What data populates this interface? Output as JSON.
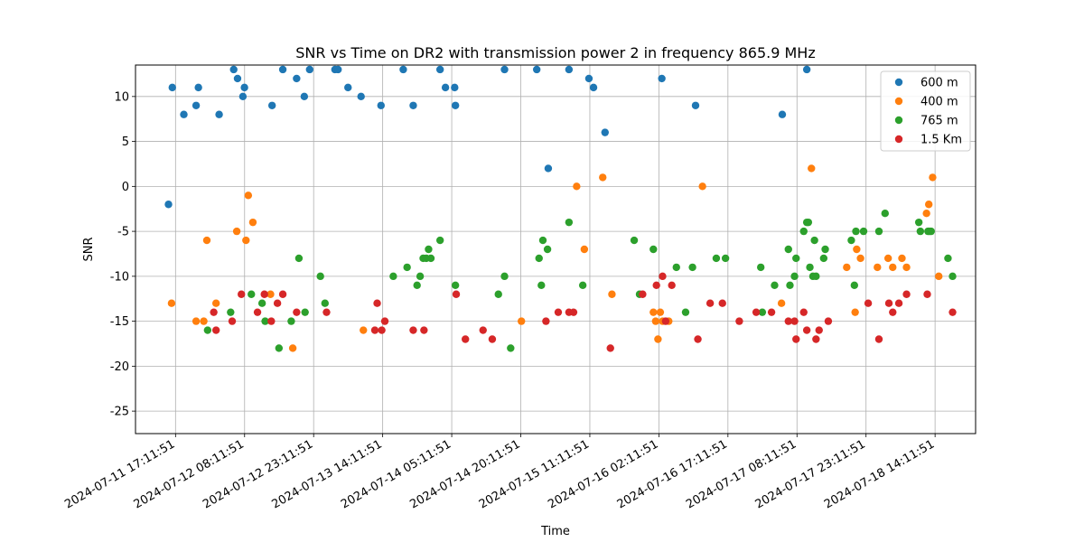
{
  "chart_data": {
    "type": "scatter",
    "title": "SNR vs Time on DR2 with transmission power 2 in frequency 865.9 MHz",
    "xlabel": "Time",
    "ylabel": "SNR",
    "x_is_time": true,
    "xlim": [
      "2024-07-11 08:30",
      "2024-07-18 23:00"
    ],
    "ylim": [
      -27.5,
      13.5
    ],
    "xticks": [
      "2024-07-11 17:11:51",
      "2024-07-12 08:11:51",
      "2024-07-12 23:11:51",
      "2024-07-13 14:11:51",
      "2024-07-14 05:11:51",
      "2024-07-14 20:11:51",
      "2024-07-15 11:11:51",
      "2024-07-16 02:11:51",
      "2024-07-16 17:11:51",
      "2024-07-17 08:11:51",
      "2024-07-17 23:11:51",
      "2024-07-18 14:11:51"
    ],
    "yticks": [
      10,
      5,
      0,
      -5,
      -10,
      -15,
      -20,
      -25
    ],
    "grid": true,
    "legend_position": "top-right",
    "series": [
      {
        "name": "600 m",
        "color": "#1f77b4",
        "points": [
          [
            "2024-07-11 15:40",
            -2
          ],
          [
            "2024-07-11 16:30",
            11
          ],
          [
            "2024-07-11 19:00",
            8
          ],
          [
            "2024-07-11 21:40",
            9
          ],
          [
            "2024-07-11 22:10",
            11
          ],
          [
            "2024-07-12 02:40",
            8
          ],
          [
            "2024-07-12 05:50",
            13
          ],
          [
            "2024-07-12 06:40",
            12
          ],
          [
            "2024-07-12 07:50",
            10
          ],
          [
            "2024-07-12 08:10",
            11
          ],
          [
            "2024-07-12 14:10",
            9
          ],
          [
            "2024-07-12 16:30",
            13
          ],
          [
            "2024-07-12 19:30",
            12
          ],
          [
            "2024-07-12 21:10",
            10
          ],
          [
            "2024-07-12 22:20",
            13
          ],
          [
            "2024-07-13 03:50",
            13
          ],
          [
            "2024-07-13 04:30",
            13
          ],
          [
            "2024-07-13 06:40",
            11
          ],
          [
            "2024-07-13 09:30",
            10
          ],
          [
            "2024-07-13 13:50",
            9
          ],
          [
            "2024-07-13 18:40",
            13
          ],
          [
            "2024-07-13 20:50",
            9
          ],
          [
            "2024-07-14 02:40",
            13
          ],
          [
            "2024-07-14 03:50",
            11
          ],
          [
            "2024-07-14 05:50",
            11
          ],
          [
            "2024-07-14 06:00",
            9
          ],
          [
            "2024-07-14 16:40",
            13
          ],
          [
            "2024-07-14 23:40",
            13
          ],
          [
            "2024-07-15 02:10",
            2
          ],
          [
            "2024-07-15 06:40",
            13
          ],
          [
            "2024-07-15 11:00",
            12
          ],
          [
            "2024-07-15 12:00",
            11
          ],
          [
            "2024-07-15 14:30",
            6
          ],
          [
            "2024-07-16 02:50",
            12
          ],
          [
            "2024-07-16 10:10",
            9
          ],
          [
            "2024-07-17 05:00",
            8
          ],
          [
            "2024-07-17 10:20",
            13
          ]
        ]
      },
      {
        "name": "400 m",
        "color": "#ff7f0e",
        "points": [
          [
            "2024-07-11 16:20",
            -13
          ],
          [
            "2024-07-11 21:40",
            -15
          ],
          [
            "2024-07-11 23:20",
            -15
          ],
          [
            "2024-07-12 00:00",
            -6
          ],
          [
            "2024-07-12 02:00",
            -13
          ],
          [
            "2024-07-12 06:30",
            -5
          ],
          [
            "2024-07-12 08:30",
            -6
          ],
          [
            "2024-07-12 09:00",
            -1
          ],
          [
            "2024-07-12 10:00",
            -4
          ],
          [
            "2024-07-12 13:50",
            -12
          ],
          [
            "2024-07-12 18:40",
            -18
          ],
          [
            "2024-07-13 10:00",
            -16
          ],
          [
            "2024-07-14 20:20",
            -15
          ],
          [
            "2024-07-15 08:20",
            0
          ],
          [
            "2024-07-15 10:00",
            -7
          ],
          [
            "2024-07-15 14:00",
            1
          ],
          [
            "2024-07-15 16:00",
            -12
          ],
          [
            "2024-07-16 01:00",
            -14
          ],
          [
            "2024-07-16 01:30",
            -15
          ],
          [
            "2024-07-16 02:00",
            -17
          ],
          [
            "2024-07-16 02:30",
            -14
          ],
          [
            "2024-07-16 03:00",
            -15
          ],
          [
            "2024-07-16 04:20",
            -15
          ],
          [
            "2024-07-16 11:40",
            0
          ],
          [
            "2024-07-17 04:50",
            -13
          ],
          [
            "2024-07-17 11:20",
            2
          ],
          [
            "2024-07-17 19:00",
            -9
          ],
          [
            "2024-07-17 20:50",
            -14
          ],
          [
            "2024-07-17 21:10",
            -7
          ],
          [
            "2024-07-17 22:00",
            -8
          ],
          [
            "2024-07-18 01:40",
            -9
          ],
          [
            "2024-07-18 04:00",
            -8
          ],
          [
            "2024-07-18 05:00",
            -9
          ],
          [
            "2024-07-18 07:00",
            -8
          ],
          [
            "2024-07-18 08:00",
            -9
          ],
          [
            "2024-07-18 12:20",
            -3
          ],
          [
            "2024-07-18 12:50",
            -2
          ],
          [
            "2024-07-18 13:40",
            1
          ],
          [
            "2024-07-18 15:00",
            -10
          ]
        ]
      },
      {
        "name": "765 m",
        "color": "#2ca02c",
        "points": [
          [
            "2024-07-12 00:10",
            -16
          ],
          [
            "2024-07-12 05:10",
            -14
          ],
          [
            "2024-07-12 09:40",
            -12
          ],
          [
            "2024-07-12 12:00",
            -13
          ],
          [
            "2024-07-12 12:40",
            -15
          ],
          [
            "2024-07-12 15:40",
            -18
          ],
          [
            "2024-07-12 18:20",
            -15
          ],
          [
            "2024-07-12 20:00",
            -8
          ],
          [
            "2024-07-12 21:20",
            -14
          ],
          [
            "2024-07-13 00:40",
            -10
          ],
          [
            "2024-07-13 01:40",
            -13
          ],
          [
            "2024-07-13 16:30",
            -10
          ],
          [
            "2024-07-13 19:30",
            -9
          ],
          [
            "2024-07-13 21:40",
            -11
          ],
          [
            "2024-07-13 22:20",
            -10
          ],
          [
            "2024-07-13 23:00",
            -8
          ],
          [
            "2024-07-13 23:40",
            -8
          ],
          [
            "2024-07-14 00:10",
            -7
          ],
          [
            "2024-07-14 00:40",
            -8
          ],
          [
            "2024-07-14 02:40",
            -6
          ],
          [
            "2024-07-14 06:00",
            -11
          ],
          [
            "2024-07-14 15:20",
            -12
          ],
          [
            "2024-07-14 16:40",
            -10
          ],
          [
            "2024-07-14 18:00",
            -18
          ],
          [
            "2024-07-15 00:10",
            -8
          ],
          [
            "2024-07-15 00:40",
            -11
          ],
          [
            "2024-07-15 01:00",
            -6
          ],
          [
            "2024-07-15 02:00",
            -7
          ],
          [
            "2024-07-15 06:40",
            -4
          ],
          [
            "2024-07-15 09:40",
            -11
          ],
          [
            "2024-07-15 20:50",
            -6
          ],
          [
            "2024-07-15 22:00",
            -12
          ],
          [
            "2024-07-16 01:00",
            -7
          ],
          [
            "2024-07-16 06:00",
            -9
          ],
          [
            "2024-07-16 08:00",
            -14
          ],
          [
            "2024-07-16 09:30",
            -9
          ],
          [
            "2024-07-16 14:40",
            -8
          ],
          [
            "2024-07-16 16:40",
            -8
          ],
          [
            "2024-07-17 00:40",
            -14
          ],
          [
            "2024-07-17 00:20",
            -9
          ],
          [
            "2024-07-17 03:20",
            -11
          ],
          [
            "2024-07-17 06:20",
            -7
          ],
          [
            "2024-07-17 06:40",
            -11
          ],
          [
            "2024-07-17 07:40",
            -10
          ],
          [
            "2024-07-17 08:00",
            -8
          ],
          [
            "2024-07-17 09:40",
            -5
          ],
          [
            "2024-07-17 10:20",
            -4
          ],
          [
            "2024-07-17 10:40",
            -4
          ],
          [
            "2024-07-17 11:00",
            -9
          ],
          [
            "2024-07-17 11:40",
            -10
          ],
          [
            "2024-07-17 12:00",
            -6
          ],
          [
            "2024-07-17 12:20",
            -10
          ],
          [
            "2024-07-17 14:00",
            -8
          ],
          [
            "2024-07-17 14:20",
            -7
          ],
          [
            "2024-07-17 20:00",
            -6
          ],
          [
            "2024-07-17 20:40",
            -11
          ],
          [
            "2024-07-17 21:00",
            -5
          ],
          [
            "2024-07-17 22:40",
            -5
          ],
          [
            "2024-07-18 02:00",
            -5
          ],
          [
            "2024-07-18 03:20",
            -3
          ],
          [
            "2024-07-18 10:40",
            -4
          ],
          [
            "2024-07-18 11:00",
            -5
          ],
          [
            "2024-07-18 12:40",
            -5
          ],
          [
            "2024-07-18 13:00",
            -5
          ],
          [
            "2024-07-18 13:20",
            -5
          ],
          [
            "2024-07-18 17:00",
            -8
          ],
          [
            "2024-07-18 18:00",
            -10
          ]
        ]
      },
      {
        "name": "1.5 Km",
        "color": "#d62728",
        "points": [
          [
            "2024-07-12 02:00",
            -16
          ],
          [
            "2024-07-12 01:30",
            -14
          ],
          [
            "2024-07-12 05:30",
            -15
          ],
          [
            "2024-07-12 07:30",
            -12
          ],
          [
            "2024-07-12 11:00",
            -14
          ],
          [
            "2024-07-12 12:30",
            -12
          ],
          [
            "2024-07-12 14:00",
            -15
          ],
          [
            "2024-07-12 15:20",
            -13
          ],
          [
            "2024-07-12 16:30",
            -12
          ],
          [
            "2024-07-12 19:30",
            -14
          ],
          [
            "2024-07-13 02:00",
            -14
          ],
          [
            "2024-07-13 12:30",
            -16
          ],
          [
            "2024-07-13 13:00",
            -13
          ],
          [
            "2024-07-13 14:00",
            -16
          ],
          [
            "2024-07-13 14:40",
            -15
          ],
          [
            "2024-07-13 20:50",
            -16
          ],
          [
            "2024-07-13 23:10",
            -16
          ],
          [
            "2024-07-14 06:10",
            -12
          ],
          [
            "2024-07-14 08:10",
            -17
          ],
          [
            "2024-07-14 12:00",
            -16
          ],
          [
            "2024-07-14 14:00",
            -17
          ],
          [
            "2024-07-15 01:40",
            -15
          ],
          [
            "2024-07-15 04:20",
            -14
          ],
          [
            "2024-07-15 06:40",
            -14
          ],
          [
            "2024-07-15 07:40",
            -14
          ],
          [
            "2024-07-15 15:40",
            -18
          ],
          [
            "2024-07-15 22:40",
            -12
          ],
          [
            "2024-07-16 01:40",
            -11
          ],
          [
            "2024-07-16 03:00",
            -10
          ],
          [
            "2024-07-16 03:40",
            -15
          ],
          [
            "2024-07-16 05:00",
            -11
          ],
          [
            "2024-07-16 10:40",
            -17
          ],
          [
            "2024-07-16 13:20",
            -13
          ],
          [
            "2024-07-16 16:00",
            -13
          ],
          [
            "2024-07-16 19:40",
            -15
          ],
          [
            "2024-07-16 23:20",
            -14
          ],
          [
            "2024-07-17 02:40",
            -14
          ],
          [
            "2024-07-17 06:20",
            -15
          ],
          [
            "2024-07-17 08:00",
            -17
          ],
          [
            "2024-07-17 07:40",
            -15
          ],
          [
            "2024-07-17 09:40",
            -14
          ],
          [
            "2024-07-17 10:20",
            -16
          ],
          [
            "2024-07-17 12:20",
            -17
          ],
          [
            "2024-07-17 13:00",
            -16
          ],
          [
            "2024-07-17 15:00",
            -15
          ],
          [
            "2024-07-17 23:40",
            -13
          ],
          [
            "2024-07-18 02:00",
            -17
          ],
          [
            "2024-07-18 04:10",
            -13
          ],
          [
            "2024-07-18 05:00",
            -14
          ],
          [
            "2024-07-18 06:20",
            -13
          ],
          [
            "2024-07-18 08:00",
            -12
          ],
          [
            "2024-07-18 12:30",
            -12
          ],
          [
            "2024-07-18 18:00",
            -14
          ]
        ]
      }
    ]
  }
}
